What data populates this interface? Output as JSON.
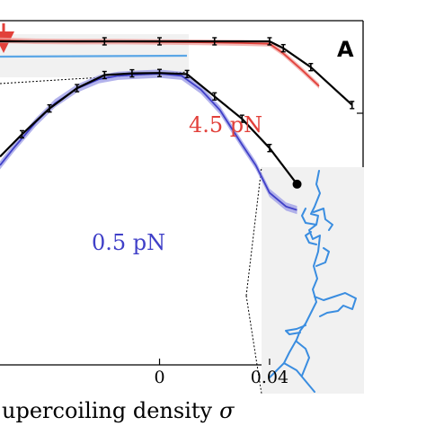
{
  "chart_data": {
    "type": "line",
    "panel_label": "A",
    "xlabel": "upercoiling density",
    "xlabel_symbol": "σ",
    "x_ticks": [
      {
        "value": 0,
        "label": "0"
      },
      {
        "value": 0.04,
        "label": "0.04"
      }
    ],
    "xlim": [
      -0.058,
      0.074
    ],
    "ylim": [
      0.0,
      1.0
    ],
    "ylabel": "",
    "series": [
      {
        "name": "4.5 pN",
        "color": "#e2403a",
        "band_color": "#f0a09c",
        "simulation": {
          "x": [
            -0.058,
            -0.045,
            -0.03,
            -0.015,
            0.0,
            0.015,
            0.03,
            0.04,
            0.045,
            0.052,
            0.058
          ],
          "y": [
            0.943,
            0.94,
            0.939,
            0.939,
            0.938,
            0.937,
            0.935,
            0.933,
            0.905,
            0.855,
            0.81
          ],
          "band": 0.008
        },
        "model": {
          "x": [
            -0.058,
            -0.02,
            0.0,
            0.02,
            0.04,
            0.045,
            0.055,
            0.07
          ],
          "y": [
            0.94,
            0.94,
            0.94,
            0.94,
            0.94,
            0.92,
            0.865,
            0.755
          ]
        }
      },
      {
        "name": "0.5 pN",
        "color": "#4040c8",
        "band_color": "#9a9ae6",
        "simulation": {
          "x": [
            -0.058,
            -0.053,
            -0.045,
            -0.038,
            -0.03,
            -0.022,
            -0.015,
            -0.008,
            0.0,
            0.008,
            0.015,
            0.022,
            0.03,
            0.035,
            0.04,
            0.046,
            0.05
          ],
          "y": [
            0.58,
            0.63,
            0.705,
            0.76,
            0.803,
            0.83,
            0.84,
            0.843,
            0.846,
            0.84,
            0.8,
            0.74,
            0.64,
            0.58,
            0.5,
            0.46,
            0.45
          ],
          "band": 0.012
        },
        "model": {
          "x": [
            -0.058,
            -0.05,
            -0.04,
            -0.03,
            -0.02,
            -0.01,
            0.0,
            0.01,
            0.02,
            0.03,
            0.04,
            0.05
          ],
          "y": [
            0.605,
            0.67,
            0.745,
            0.804,
            0.842,
            0.847,
            0.848,
            0.845,
            0.78,
            0.715,
            0.63,
            0.525
          ]
        }
      }
    ],
    "inset_legend": {
      "line_color": "#5aa6e6"
    },
    "grid": false
  }
}
